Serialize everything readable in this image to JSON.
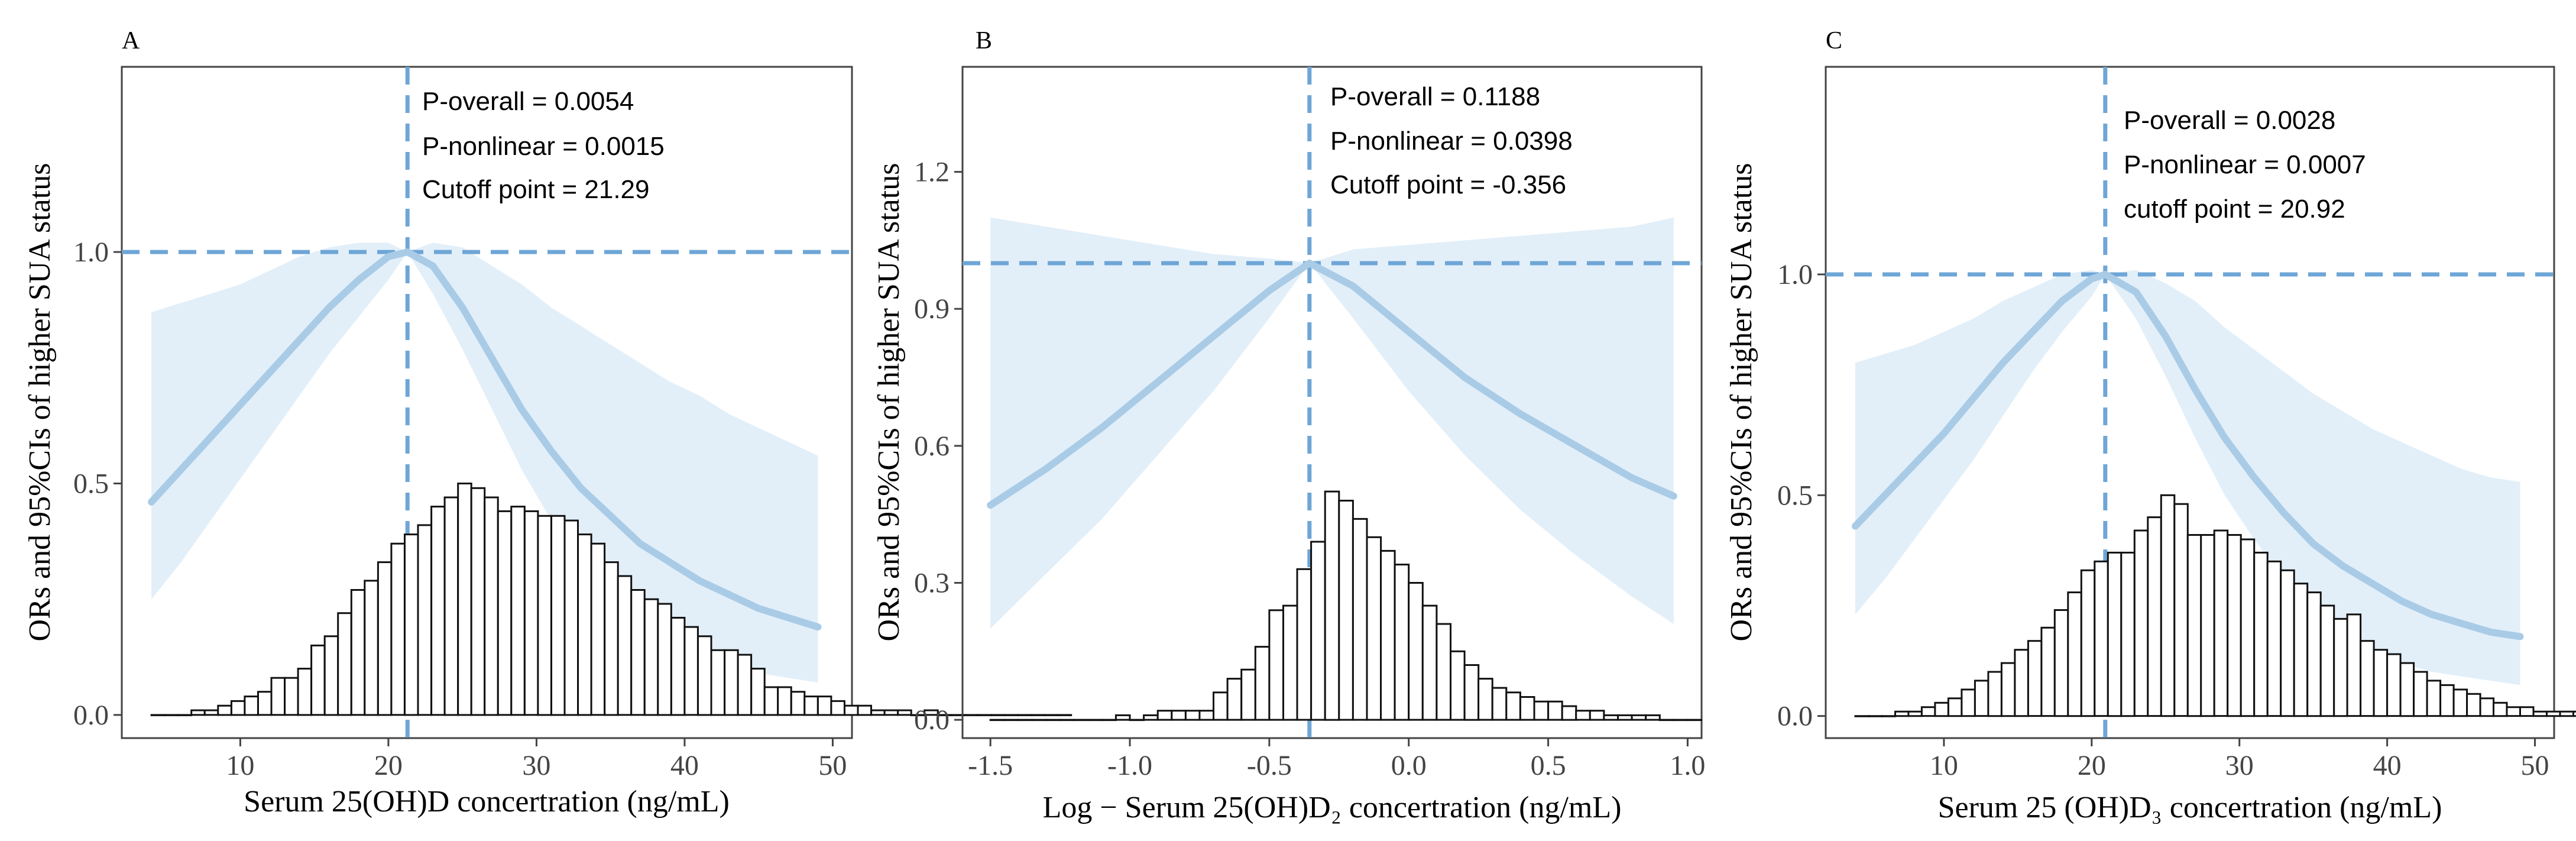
{
  "colors": {
    "curve": "#a9cbe6",
    "ci_band": "#e2eff9",
    "reference_dash": "#6ea6d6",
    "bar_fill": "#ffffff",
    "bar_edge": "#111111",
    "axis": "#444444",
    "text": "#000000"
  },
  "chart_data": [
    {
      "type": "line",
      "panel_label": "A",
      "xlabel": "Serum 25(OH)D concertration (ng/mL)",
      "ylabel": "ORs and 95%CIs of higher SUA status",
      "xlim": [
        2,
        51.3
      ],
      "ylim": [
        -0.05,
        1.4
      ],
      "xticks": [
        10,
        20,
        30,
        40,
        50
      ],
      "xtick_labels": [
        "10",
        "20",
        "30",
        "40",
        "50"
      ],
      "yticks": [
        0.0,
        0.5,
        1.0
      ],
      "ytick_labels": [
        "0.0",
        "0.5",
        "1.0"
      ],
      "reference_y": 1.0,
      "cutoff_x": 21.29,
      "annotations": [
        "P-overall = 0.0054",
        "P-nonlinear = 0.0015",
        "Cutoff point = 21.29"
      ],
      "curve": {
        "x": [
          4,
          6,
          8,
          10,
          12,
          14,
          16,
          18,
          20,
          21.29,
          23,
          25,
          27,
          29,
          31,
          33,
          35,
          37,
          39,
          41,
          43,
          45,
          47,
          49
        ],
        "y": [
          0.46,
          0.53,
          0.6,
          0.67,
          0.74,
          0.81,
          0.88,
          0.94,
          0.99,
          1.0,
          0.97,
          0.88,
          0.77,
          0.66,
          0.57,
          0.49,
          0.43,
          0.37,
          0.33,
          0.29,
          0.26,
          0.23,
          0.21,
          0.19
        ],
        "lower": [
          0.25,
          0.33,
          0.42,
          0.51,
          0.6,
          0.69,
          0.78,
          0.86,
          0.94,
          1.0,
          0.91,
          0.79,
          0.66,
          0.53,
          0.42,
          0.33,
          0.26,
          0.2,
          0.16,
          0.13,
          0.11,
          0.09,
          0.08,
          0.07
        ],
        "upper": [
          0.87,
          0.89,
          0.91,
          0.93,
          0.96,
          0.99,
          1.01,
          1.02,
          1.02,
          1.0,
          1.02,
          1.01,
          0.97,
          0.93,
          0.88,
          0.84,
          0.8,
          0.76,
          0.72,
          0.69,
          0.65,
          0.62,
          0.59,
          0.56
        ]
      },
      "histogram": {
        "bin_start": 4,
        "bin_width": 0.9,
        "counts": [
          0.0,
          0.0,
          0.0,
          0.01,
          0.01,
          0.02,
          0.03,
          0.04,
          0.05,
          0.08,
          0.08,
          0.1,
          0.15,
          0.17,
          0.22,
          0.27,
          0.29,
          0.33,
          0.37,
          0.39,
          0.41,
          0.45,
          0.47,
          0.5,
          0.49,
          0.47,
          0.44,
          0.45,
          0.44,
          0.43,
          0.43,
          0.42,
          0.39,
          0.37,
          0.33,
          0.3,
          0.27,
          0.25,
          0.24,
          0.21,
          0.19,
          0.17,
          0.14,
          0.14,
          0.13,
          0.1,
          0.06,
          0.06,
          0.05,
          0.04,
          0.04,
          0.03,
          0.02,
          0.02,
          0.01,
          0.01,
          0.01,
          0.0,
          0.01,
          0.0,
          0.0,
          0.0,
          0.0,
          0.0,
          0.0,
          0.0,
          0.0,
          0.0,
          0.0
        ]
      }
    },
    {
      "type": "line",
      "panel_label": "B",
      "xlabel": "Log − Serum 25(OH)D₂ concertration (ng/mL)",
      "ylabel": "ORs and 95%CIs of higher SUA status",
      "xlim": [
        -1.6,
        1.05
      ],
      "ylim": [
        -0.04,
        1.43
      ],
      "xticks": [
        -1.5,
        -1.0,
        -0.5,
        0.0,
        0.5,
        1.0
      ],
      "xtick_labels": [
        "-1.5",
        "-1.0",
        "-0.5",
        "0.0",
        "0.5",
        "1.0"
      ],
      "yticks": [
        0.0,
        0.3,
        0.6,
        0.9,
        1.2
      ],
      "ytick_labels": [
        "0.0",
        "0.3",
        "0.6",
        "0.9",
        "1.2"
      ],
      "reference_y": 1.0,
      "cutoff_x": -0.356,
      "annotations": [
        "P-overall = 0.1188",
        "P-nonlinear = 0.0398",
        "Cutoff point = -0.356"
      ],
      "curve": {
        "x": [
          -1.5,
          -1.3,
          -1.1,
          -0.9,
          -0.7,
          -0.5,
          -0.356,
          -0.2,
          0.0,
          0.2,
          0.4,
          0.6,
          0.8,
          0.95
        ],
        "y": [
          0.47,
          0.55,
          0.64,
          0.74,
          0.84,
          0.94,
          1.0,
          0.95,
          0.85,
          0.75,
          0.67,
          0.6,
          0.53,
          0.49
        ],
        "lower": [
          0.2,
          0.32,
          0.44,
          0.58,
          0.72,
          0.88,
          1.0,
          0.88,
          0.72,
          0.58,
          0.46,
          0.36,
          0.27,
          0.21
        ],
        "upper": [
          1.1,
          1.08,
          1.06,
          1.04,
          1.02,
          1.01,
          1.0,
          1.03,
          1.04,
          1.05,
          1.06,
          1.07,
          1.08,
          1.1
        ]
      },
      "histogram": {
        "bin_start": -1.5,
        "bin_width": 0.05,
        "counts": [
          0.0,
          0.0,
          0.0,
          0.0,
          0.0,
          0.0,
          0.0,
          0.0,
          0.0,
          0.01,
          0.0,
          0.01,
          0.02,
          0.02,
          0.02,
          0.02,
          0.06,
          0.09,
          0.11,
          0.16,
          0.24,
          0.25,
          0.33,
          0.39,
          0.5,
          0.48,
          0.44,
          0.4,
          0.37,
          0.34,
          0.3,
          0.25,
          0.21,
          0.15,
          0.12,
          0.09,
          0.07,
          0.06,
          0.05,
          0.04,
          0.04,
          0.03,
          0.02,
          0.02,
          0.01,
          0.01,
          0.01,
          0.01,
          0.0,
          0.0,
          0.0
        ]
      }
    },
    {
      "type": "line",
      "panel_label": "C",
      "xlabel": "Serum 25 (OH)D₃ concertration (ng/mL)",
      "ylabel": "ORs and 95%CIs of higher SUA status",
      "xlim": [
        2,
        51.3
      ],
      "ylim": [
        -0.05,
        1.47
      ],
      "xticks": [
        10,
        20,
        30,
        40,
        50
      ],
      "xtick_labels": [
        "10",
        "20",
        "30",
        "40",
        "50"
      ],
      "yticks": [
        0.0,
        0.5,
        1.0
      ],
      "ytick_labels": [
        "0.0",
        "0.5",
        "1.0"
      ],
      "reference_y": 1.0,
      "cutoff_x": 20.92,
      "annotations": [
        "P-overall = 0.0028",
        "P-nonlinear = 0.0007",
        "cutoff point = 20.92"
      ],
      "curve": {
        "x": [
          4,
          6,
          8,
          10,
          12,
          14,
          16,
          18,
          20,
          20.92,
          23,
          25,
          27,
          29,
          31,
          33,
          35,
          37,
          39,
          41,
          43,
          45,
          47,
          49
        ],
        "y": [
          0.43,
          0.5,
          0.57,
          0.64,
          0.72,
          0.8,
          0.87,
          0.94,
          0.99,
          1.0,
          0.96,
          0.86,
          0.74,
          0.63,
          0.54,
          0.46,
          0.39,
          0.34,
          0.3,
          0.26,
          0.23,
          0.21,
          0.19,
          0.18
        ],
        "lower": [
          0.23,
          0.31,
          0.4,
          0.49,
          0.58,
          0.68,
          0.78,
          0.87,
          0.95,
          1.0,
          0.9,
          0.77,
          0.63,
          0.5,
          0.4,
          0.31,
          0.24,
          0.18,
          0.15,
          0.12,
          0.1,
          0.09,
          0.08,
          0.07
        ],
        "upper": [
          0.8,
          0.82,
          0.84,
          0.87,
          0.9,
          0.94,
          0.97,
          1.0,
          1.01,
          1.0,
          1.01,
          0.98,
          0.94,
          0.88,
          0.83,
          0.78,
          0.73,
          0.69,
          0.65,
          0.62,
          0.59,
          0.56,
          0.54,
          0.53
        ]
      },
      "histogram": {
        "bin_start": 4,
        "bin_width": 0.9,
        "counts": [
          0.0,
          0.0,
          0.0,
          0.01,
          0.01,
          0.02,
          0.03,
          0.04,
          0.06,
          0.08,
          0.1,
          0.12,
          0.15,
          0.17,
          0.2,
          0.24,
          0.28,
          0.33,
          0.35,
          0.37,
          0.37,
          0.42,
          0.45,
          0.5,
          0.48,
          0.41,
          0.41,
          0.42,
          0.41,
          0.4,
          0.37,
          0.35,
          0.33,
          0.3,
          0.28,
          0.25,
          0.22,
          0.23,
          0.17,
          0.15,
          0.14,
          0.12,
          0.1,
          0.08,
          0.07,
          0.06,
          0.05,
          0.04,
          0.03,
          0.02,
          0.02,
          0.01,
          0.01,
          0.01,
          0.01,
          0.01,
          0.0,
          0.0,
          0.0,
          0.0,
          0.0,
          0.0,
          0.0,
          0.0,
          0.0,
          0.0,
          0.0,
          0.0,
          0.0
        ]
      }
    }
  ]
}
